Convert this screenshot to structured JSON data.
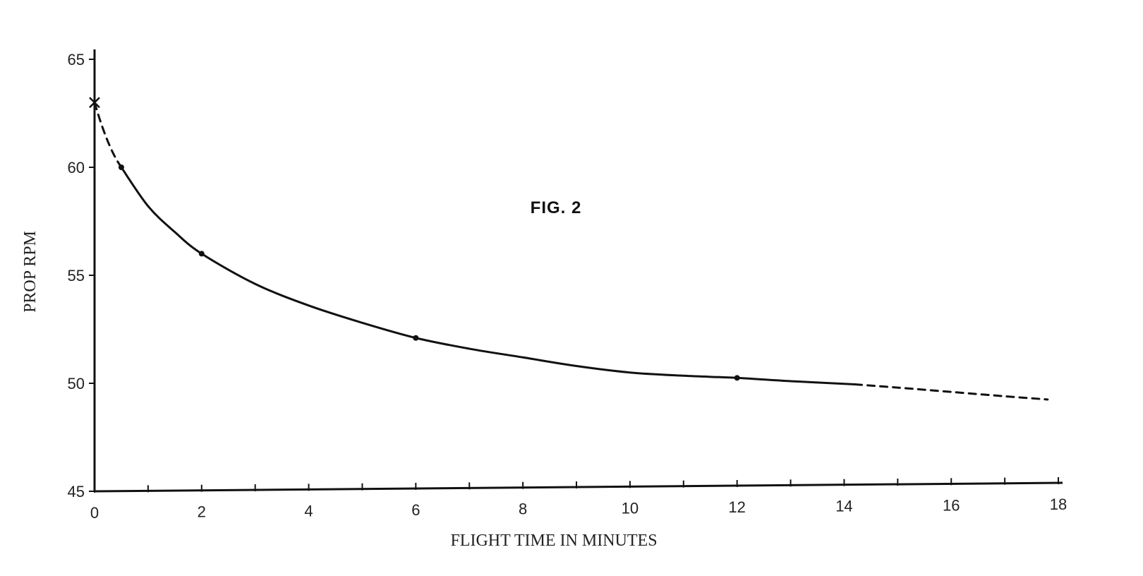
{
  "chart_data": {
    "type": "line",
    "title": "FIG. 2",
    "xlabel": "FLIGHT TIME IN MINUTES",
    "ylabel": "PROP RPM",
    "xlim": [
      0,
      18
    ],
    "ylim": [
      45,
      65
    ],
    "x_ticks": [
      0,
      2,
      4,
      6,
      8,
      10,
      12,
      14,
      16,
      18
    ],
    "x_tick_labels": [
      "0",
      "2",
      "4",
      "6",
      "8",
      "10",
      "12",
      "14",
      "16",
      "18"
    ],
    "y_ticks": [
      45,
      50,
      55,
      60,
      65
    ],
    "y_tick_labels": [
      "45",
      "50",
      "55",
      "60",
      "65"
    ],
    "grid": false,
    "series": [
      {
        "style": "dashed",
        "x": [
          0,
          0.1,
          0.2,
          0.3,
          0.4,
          0.5
        ],
        "y": [
          63.0,
          62.2,
          61.5,
          60.9,
          60.4,
          60.0
        ]
      },
      {
        "style": "solid",
        "x": [
          0.5,
          1,
          1.5,
          2,
          3,
          4,
          5,
          6,
          7,
          8,
          9,
          10,
          11,
          12,
          13,
          14.2
        ],
        "y": [
          60.0,
          58.2,
          57.0,
          56.0,
          54.6,
          53.6,
          52.8,
          52.1,
          51.6,
          51.2,
          50.8,
          50.5,
          50.35,
          50.25,
          50.1,
          49.95
        ]
      },
      {
        "style": "dashed",
        "x": [
          14.2,
          15,
          16,
          17,
          17.8
        ],
        "y": [
          49.95,
          49.8,
          49.6,
          49.4,
          49.25
        ]
      }
    ],
    "points": [
      {
        "x": 0,
        "y": 63.0,
        "marker": "x"
      },
      {
        "x": 0.5,
        "y": 60.0,
        "marker": "dot"
      },
      {
        "x": 2,
        "y": 56.0,
        "marker": "dot"
      },
      {
        "x": 6,
        "y": 52.1,
        "marker": "dot"
      },
      {
        "x": 12,
        "y": 50.25,
        "marker": "dot"
      }
    ]
  }
}
